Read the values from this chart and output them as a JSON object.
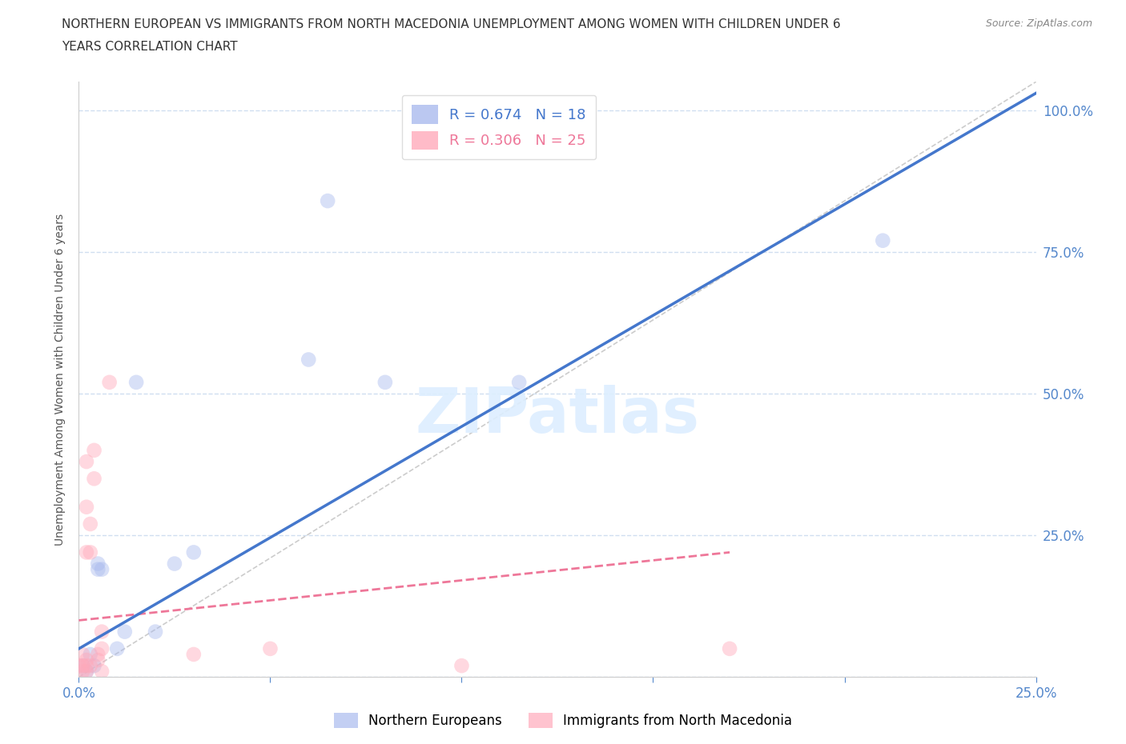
{
  "title_line1": "NORTHERN EUROPEAN VS IMMIGRANTS FROM NORTH MACEDONIA UNEMPLOYMENT AMONG WOMEN WITH CHILDREN UNDER 6",
  "title_line2": "YEARS CORRELATION CHART",
  "source": "Source: ZipAtlas.com",
  "ylabel": "Unemployment Among Women with Children Under 6 years",
  "watermark": "ZIPatlas",
  "blue_R": 0.674,
  "blue_N": 18,
  "pink_R": 0.306,
  "pink_N": 25,
  "xlim": [
    0.0,
    0.25
  ],
  "ylim": [
    0.0,
    1.05
  ],
  "xticks": [
    0.0,
    0.05,
    0.1,
    0.15,
    0.2,
    0.25
  ],
  "yticks": [
    0.0,
    0.25,
    0.5,
    0.75,
    1.0
  ],
  "axis_color": "#5588cc",
  "grid_color": "#d0dff0",
  "blue_scatter": [
    [
      0.001,
      0.02
    ],
    [
      0.002,
      0.01
    ],
    [
      0.003,
      0.04
    ],
    [
      0.004,
      0.02
    ],
    [
      0.005,
      0.19
    ],
    [
      0.005,
      0.2
    ],
    [
      0.006,
      0.19
    ],
    [
      0.01,
      0.05
    ],
    [
      0.012,
      0.08
    ],
    [
      0.015,
      0.52
    ],
    [
      0.02,
      0.08
    ],
    [
      0.025,
      0.2
    ],
    [
      0.03,
      0.22
    ],
    [
      0.06,
      0.56
    ],
    [
      0.065,
      0.84
    ],
    [
      0.08,
      0.52
    ],
    [
      0.115,
      0.52
    ],
    [
      0.21,
      0.77
    ]
  ],
  "pink_scatter": [
    [
      0.0,
      0.02
    ],
    [
      0.001,
      0.01
    ],
    [
      0.001,
      0.02
    ],
    [
      0.001,
      0.04
    ],
    [
      0.002,
      0.01
    ],
    [
      0.002,
      0.02
    ],
    [
      0.002,
      0.03
    ],
    [
      0.002,
      0.22
    ],
    [
      0.002,
      0.3
    ],
    [
      0.002,
      0.38
    ],
    [
      0.003,
      0.02
    ],
    [
      0.003,
      0.22
    ],
    [
      0.003,
      0.27
    ],
    [
      0.004,
      0.35
    ],
    [
      0.004,
      0.4
    ],
    [
      0.005,
      0.03
    ],
    [
      0.005,
      0.04
    ],
    [
      0.006,
      0.01
    ],
    [
      0.006,
      0.05
    ],
    [
      0.006,
      0.08
    ],
    [
      0.008,
      0.52
    ],
    [
      0.03,
      0.04
    ],
    [
      0.05,
      0.05
    ],
    [
      0.1,
      0.02
    ],
    [
      0.17,
      0.05
    ]
  ],
  "blue_color": "#aabbee",
  "pink_color": "#ffaabb",
  "blue_line_color": "#4477cc",
  "pink_line_color": "#ee7799",
  "diag_line_color": "#cccccc",
  "scatter_size": 180,
  "scatter_alpha": 0.45,
  "blue_line_x0": 0.0,
  "blue_line_y0": 0.05,
  "blue_line_x1": 0.25,
  "blue_line_y1": 1.03,
  "pink_line_x0": 0.0,
  "pink_line_y0": 0.1,
  "pink_line_x1": 0.17,
  "pink_line_y1": 0.22,
  "legend_blue_label": "Northern Europeans",
  "legend_pink_label": "Immigrants from North Macedonia"
}
